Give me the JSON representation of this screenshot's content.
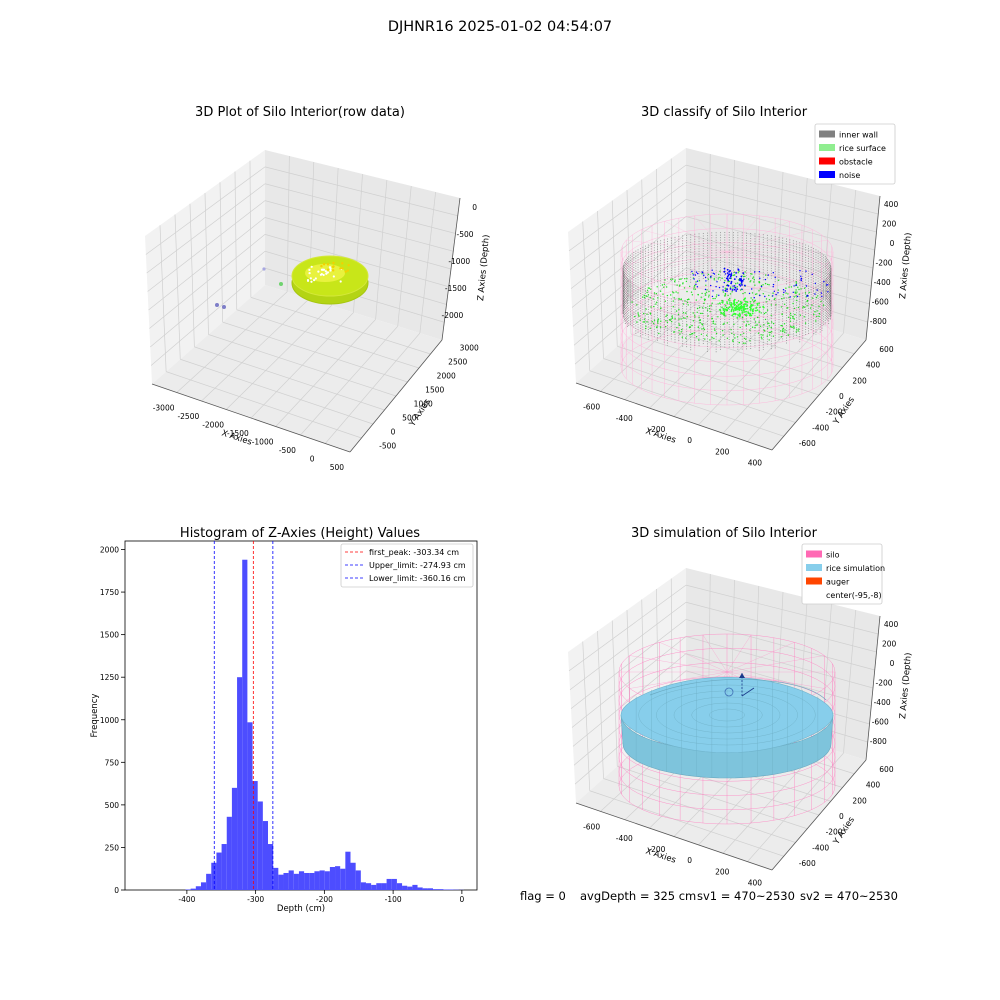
{
  "suptitle": "DJHNR16 2025-01-02 04:54:07",
  "footer": {
    "flag": "flag = 0",
    "avg_depth": "avgDepth = 325 cm",
    "sv1": "sv1 = 470~2530",
    "sv2": "sv2 = 470~2530"
  },
  "colors": {
    "inner_wall": "#808080",
    "rice_surface": "#90ee90",
    "obstacle": "#ff0000",
    "noise": "#0000ff",
    "silo": "#ff69b4",
    "rice_simulation": "#87ceeb",
    "auger": "#ff4500",
    "histogram": "#4d4dff",
    "raw_surface": "#c8e619"
  },
  "chart_data": [
    {
      "type": "scatter3d",
      "title": "3D Plot of Silo Interior(row data)",
      "xlabel": "X Axies",
      "ylabel": "Y Axies",
      "zlabel": "Z Axies (Depth)",
      "x_ticks": [
        "-3000",
        "-2500",
        "-2000",
        "-1500",
        "-1000",
        "-500",
        "0",
        "500"
      ],
      "y_ticks": [
        "-500",
        "0",
        "500",
        "1000",
        "1500",
        "2000",
        "2500",
        "3000"
      ],
      "z_ticks": [
        "0",
        "-500",
        "-1000",
        "-1500",
        "-2000"
      ],
      "grid": true
    },
    {
      "type": "scatter3d",
      "title": "3D classify of Silo Interior",
      "xlabel": "X Axies",
      "ylabel": "Y Axies",
      "zlabel": "Z Axies (Depth)",
      "x_ticks": [
        "-600",
        "-400",
        "-200",
        "0",
        "200",
        "400"
      ],
      "y_ticks": [
        "-600",
        "-400",
        "-200",
        "0",
        "200",
        "400",
        "600"
      ],
      "z_ticks": [
        "400",
        "200",
        "0",
        "-200",
        "-400",
        "-600",
        "-800"
      ],
      "legend": [
        "inner wall",
        "rice surface",
        "obstacle",
        "noise"
      ],
      "legend_position": "top-right",
      "grid": true
    },
    {
      "type": "bar",
      "title": "Histogram of Z-Axies (Height) Values",
      "xlabel": "Depth (cm)",
      "ylabel": "Frequency",
      "xlim": [
        -490,
        22
      ],
      "ylim": [
        0,
        2050
      ],
      "x_ticks": [
        -400,
        -300,
        -200,
        -100,
        0
      ],
      "y_ticks": [
        0,
        250,
        500,
        750,
        1000,
        1250,
        1500,
        1750,
        2000
      ],
      "bin_width": 7.5,
      "bins": [
        [
          -402,
          3
        ],
        [
          -394.5,
          8
        ],
        [
          -387,
          22
        ],
        [
          -379.5,
          45
        ],
        [
          -372,
          95
        ],
        [
          -364.5,
          160
        ],
        [
          -357,
          220
        ],
        [
          -349.5,
          270
        ],
        [
          -342,
          430
        ],
        [
          -334.5,
          600
        ],
        [
          -327,
          1250
        ],
        [
          -319.5,
          1940
        ],
        [
          -312,
          985
        ],
        [
          -304.5,
          640
        ],
        [
          -297,
          520
        ],
        [
          -289.5,
          405
        ],
        [
          -282,
          270
        ],
        [
          -274.5,
          130
        ],
        [
          -267,
          90
        ],
        [
          -259.5,
          100
        ],
        [
          -252,
          115
        ],
        [
          -244.5,
          95
        ],
        [
          -237,
          110
        ],
        [
          -229.5,
          100
        ],
        [
          -222,
          100
        ],
        [
          -214.5,
          110
        ],
        [
          -207,
          115
        ],
        [
          -199.5,
          110
        ],
        [
          -192,
          135
        ],
        [
          -184.5,
          140
        ],
        [
          -177,
          125
        ],
        [
          -169.5,
          225
        ],
        [
          -162,
          160
        ],
        [
          -154.5,
          115
        ],
        [
          -147,
          45
        ],
        [
          -139.5,
          40
        ],
        [
          -132,
          30
        ],
        [
          -124.5,
          40
        ],
        [
          -117,
          40
        ],
        [
          -109.5,
          65
        ],
        [
          -102,
          65
        ],
        [
          -94.5,
          40
        ],
        [
          -87,
          25
        ],
        [
          -79.5,
          20
        ],
        [
          -72,
          30
        ],
        [
          -64.5,
          15
        ],
        [
          -57,
          10
        ],
        [
          -49.5,
          10
        ],
        [
          -42,
          5
        ],
        [
          -34.5,
          5
        ],
        [
          -27,
          3
        ],
        [
          -19.5,
          3
        ],
        [
          -12,
          2
        ],
        [
          -4.5,
          1
        ]
      ],
      "lines": [
        {
          "label": "first_peak: -303.34 cm",
          "value": -303.34,
          "color": "#ff0000"
        },
        {
          "label": "Upper_limit: -274.93 cm",
          "value": -274.93,
          "color": "#0000ff"
        },
        {
          "label": "Lower_limit: -360.16 cm",
          "value": -360.16,
          "color": "#0000ff"
        }
      ],
      "legend_position": "top-right"
    },
    {
      "type": "surface3d",
      "title": "3D simulation of Silo Interior",
      "xlabel": "X Axies",
      "ylabel": "Y Axies",
      "zlabel": "Z Axies (Depth)",
      "x_ticks": [
        "-600",
        "-400",
        "-200",
        "0",
        "200",
        "400"
      ],
      "y_ticks": [
        "-600",
        "-400",
        "-200",
        "0",
        "200",
        "400",
        "600"
      ],
      "z_ticks": [
        "400",
        "200",
        "0",
        "-200",
        "-400",
        "-600",
        "-800"
      ],
      "legend": [
        "silo",
        "rice simulation",
        "auger",
        "center(-95,-8)"
      ],
      "legend_position": "top-right",
      "grid": true
    }
  ]
}
